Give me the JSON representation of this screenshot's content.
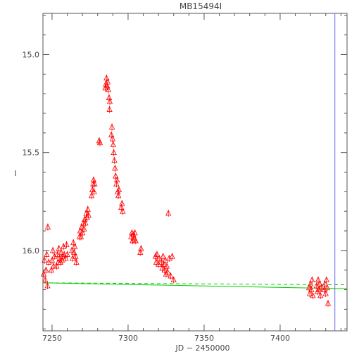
{
  "chart_data": {
    "type": "scatter",
    "title": "MB15494I",
    "xlabel": "JD − 2450000",
    "ylabel": "I",
    "xlim": [
      7244,
      7444
    ],
    "ylim": [
      16.41,
      14.79
    ],
    "y_inverted": true,
    "xticks": [
      {
        "value": 7250,
        "label": "7250"
      },
      {
        "value": 7300,
        "label": "7300"
      },
      {
        "value": 7350,
        "label": "7350"
      },
      {
        "value": 7400,
        "label": "7400"
      }
    ],
    "yticks": [
      {
        "value": 15.0,
        "label": "15.0"
      },
      {
        "value": 15.5,
        "label": "15.5"
      },
      {
        "value": 16.0,
        "label": "16.0"
      }
    ],
    "grid": false,
    "colors": {
      "points": "#ff0000",
      "model": "#00cc00",
      "marker_line": "#6a6aee",
      "axes": "#555555"
    },
    "series": [
      {
        "marker": "triangle-open",
        "points": [
          [
            7244.5,
            16.12
          ],
          [
            7245.0,
            16.05
          ],
          [
            7245.5,
            16.15
          ],
          [
            7246.0,
            16.1
          ],
          [
            7246.5,
            16.02
          ],
          [
            7247.0,
            16.18
          ],
          [
            7247.2,
            15.88
          ],
          [
            7247.8,
            16.06
          ],
          [
            7249.5,
            16.1
          ],
          [
            7250.0,
            16.05
          ],
          [
            7250.5,
            16.0
          ],
          [
            7251.0,
            16.08
          ],
          [
            7251.5,
            16.03
          ],
          [
            7253.0,
            16.08
          ],
          [
            7253.5,
            16.02
          ],
          [
            7254.0,
            16.06
          ],
          [
            7254.5,
            15.99
          ],
          [
            7255.0,
            16.04
          ],
          [
            7255.5,
            16.06
          ],
          [
            7256.0,
            16.01
          ],
          [
            7256.5,
            16.05
          ],
          [
            7257.0,
            16.03
          ],
          [
            7257.5,
            15.98
          ],
          [
            7258.0,
            16.02
          ],
          [
            7259.0,
            16.04
          ],
          [
            7259.5,
            15.97
          ],
          [
            7260.0,
            16.02
          ],
          [
            7263.0,
            16.0
          ],
          [
            7263.5,
            16.04
          ],
          [
            7264.0,
            15.96
          ],
          [
            7264.5,
            16.01
          ],
          [
            7265.0,
            15.98
          ],
          [
            7265.5,
            16.03
          ],
          [
            7266.0,
            16.06
          ],
          [
            7268.0,
            15.93
          ],
          [
            7268.5,
            15.9
          ],
          [
            7269.0,
            15.93
          ],
          [
            7269.5,
            15.88
          ],
          [
            7270.0,
            15.91
          ],
          [
            7270.5,
            15.86
          ],
          [
            7271.0,
            15.89
          ],
          [
            7271.5,
            15.84
          ],
          [
            7272.0,
            15.86
          ],
          [
            7272.5,
            15.81
          ],
          [
            7273.0,
            15.83
          ],
          [
            7273.5,
            15.79
          ],
          [
            7274.0,
            15.82
          ],
          [
            7276.0,
            15.72
          ],
          [
            7276.5,
            15.69
          ],
          [
            7277.0,
            15.66
          ],
          [
            7277.3,
            15.64
          ],
          [
            7277.6,
            15.7
          ],
          [
            7278.0,
            15.66
          ],
          [
            7281.0,
            15.44
          ],
          [
            7281.5,
            15.45
          ],
          [
            7285.0,
            15.17
          ],
          [
            7285.4,
            15.15
          ],
          [
            7285.8,
            15.12
          ],
          [
            7286.2,
            15.16
          ],
          [
            7286.6,
            15.14
          ],
          [
            7287.0,
            15.18
          ],
          [
            7287.5,
            15.22
          ],
          [
            7287.8,
            15.28
          ],
          [
            7288.0,
            15.24
          ],
          [
            7289.0,
            15.41
          ],
          [
            7289.4,
            15.37
          ],
          [
            7289.8,
            15.43
          ],
          [
            7290.2,
            15.46
          ],
          [
            7290.6,
            15.5
          ],
          [
            7291.0,
            15.54
          ],
          [
            7291.4,
            15.58
          ],
          [
            7291.8,
            15.62
          ],
          [
            7292.3,
            15.66
          ],
          [
            7292.7,
            15.64
          ],
          [
            7293.2,
            15.7
          ],
          [
            7293.6,
            15.72
          ],
          [
            7294.0,
            15.69
          ],
          [
            7295.5,
            15.78
          ],
          [
            7296.0,
            15.76
          ],
          [
            7296.5,
            15.8
          ],
          [
            7302.0,
            15.93
          ],
          [
            7302.5,
            15.91
          ],
          [
            7303.0,
            15.95
          ],
          [
            7303.5,
            15.92
          ],
          [
            7304.0,
            15.94
          ],
          [
            7304.5,
            15.91
          ],
          [
            7305.0,
            15.95
          ],
          [
            7308.0,
            16.01
          ],
          [
            7308.5,
            15.99
          ],
          [
            7318.0,
            16.03
          ],
          [
            7318.5,
            16.06
          ],
          [
            7319.0,
            16.02
          ],
          [
            7320.0,
            16.07
          ],
          [
            7320.5,
            16.04
          ],
          [
            7322.0,
            16.06
          ],
          [
            7322.5,
            16.09
          ],
          [
            7323.0,
            16.03
          ],
          [
            7323.5,
            16.07
          ],
          [
            7324.0,
            16.1
          ],
          [
            7324.5,
            16.05
          ],
          [
            7325.0,
            16.12
          ],
          [
            7325.5,
            16.08
          ],
          [
            7326.0,
            16.11
          ],
          [
            7326.5,
            15.81
          ],
          [
            7327.0,
            16.04
          ],
          [
            7328.0,
            16.13
          ],
          [
            7329.0,
            16.03
          ],
          [
            7330.0,
            16.15
          ],
          [
            7419.0,
            16.19
          ],
          [
            7419.5,
            16.22
          ],
          [
            7420.0,
            16.17
          ],
          [
            7420.5,
            16.2
          ],
          [
            7421.0,
            16.15
          ],
          [
            7421.5,
            16.23
          ],
          [
            7424.0,
            16.18
          ],
          [
            7424.5,
            16.21
          ],
          [
            7425.0,
            16.15
          ],
          [
            7425.5,
            16.2
          ],
          [
            7426.0,
            16.17
          ],
          [
            7426.5,
            16.23
          ],
          [
            7427.0,
            16.19
          ],
          [
            7429.0,
            16.2
          ],
          [
            7429.5,
            16.17
          ],
          [
            7430.0,
            16.22
          ],
          [
            7430.5,
            16.15
          ],
          [
            7431.0,
            16.19
          ],
          [
            7431.5,
            16.27
          ]
        ]
      },
      {
        "line": "solid",
        "points": [
          [
            7244,
            16.165
          ],
          [
            7444,
            16.195
          ]
        ]
      },
      {
        "line": "dashed",
        "points": [
          [
            7244,
            16.165
          ],
          [
            7444,
            16.175
          ]
        ]
      }
    ],
    "vertical_line_x": 7436
  }
}
